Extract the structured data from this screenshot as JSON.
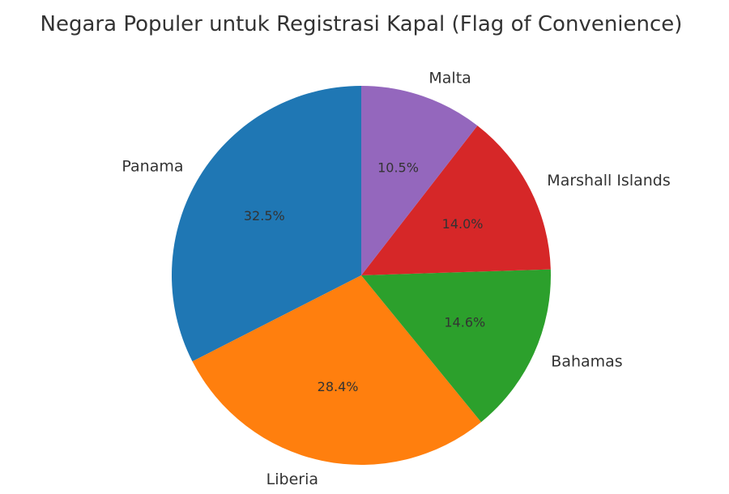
{
  "chart_data": {
    "type": "pie",
    "title": "Negara Populer untuk Registrasi Kapal (Flag of Convenience)",
    "start_angle_deg": 90,
    "direction": "counterclockwise",
    "slices": [
      {
        "label": "Panama",
        "value": 32.5,
        "pct_label": "32.5%",
        "color": "#1f77b4"
      },
      {
        "label": "Liberia",
        "value": 28.4,
        "pct_label": "28.4%",
        "color": "#ff7f0e"
      },
      {
        "label": "Bahamas",
        "value": 14.6,
        "pct_label": "14.6%",
        "color": "#2ca02c"
      },
      {
        "label": "Marshall Islands",
        "value": 14.0,
        "pct_label": "14.0%",
        "color": "#d62728"
      },
      {
        "label": "Malta",
        "value": 10.5,
        "pct_label": "10.5%",
        "color": "#9467bd"
      }
    ]
  }
}
